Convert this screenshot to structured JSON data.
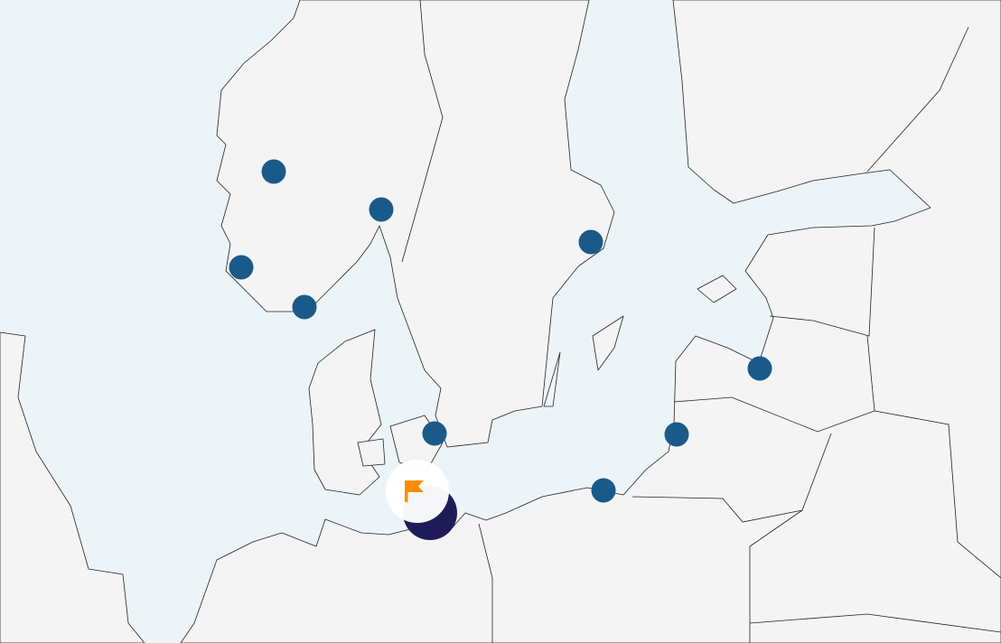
{
  "map": {
    "region": "Baltic Sea",
    "colors": {
      "sea": "#edf4f8",
      "land": "#f4f4f4",
      "marker": "#1a5a8a",
      "selected_marker": "#201c5a",
      "flag": "#ff8c00"
    },
    "markers": [
      {
        "id": "m1",
        "icon": "circle"
      },
      {
        "id": "m2",
        "icon": "circle"
      },
      {
        "id": "m3",
        "icon": "circle"
      },
      {
        "id": "m4",
        "icon": "circle"
      },
      {
        "id": "m5",
        "icon": "circle"
      },
      {
        "id": "m6",
        "icon": "circle"
      },
      {
        "id": "m7",
        "icon": "circle"
      },
      {
        "id": "m8",
        "icon": "circle"
      },
      {
        "id": "m9",
        "icon": "circle"
      }
    ],
    "selected_marker": {
      "icon": "flag-icon"
    }
  }
}
